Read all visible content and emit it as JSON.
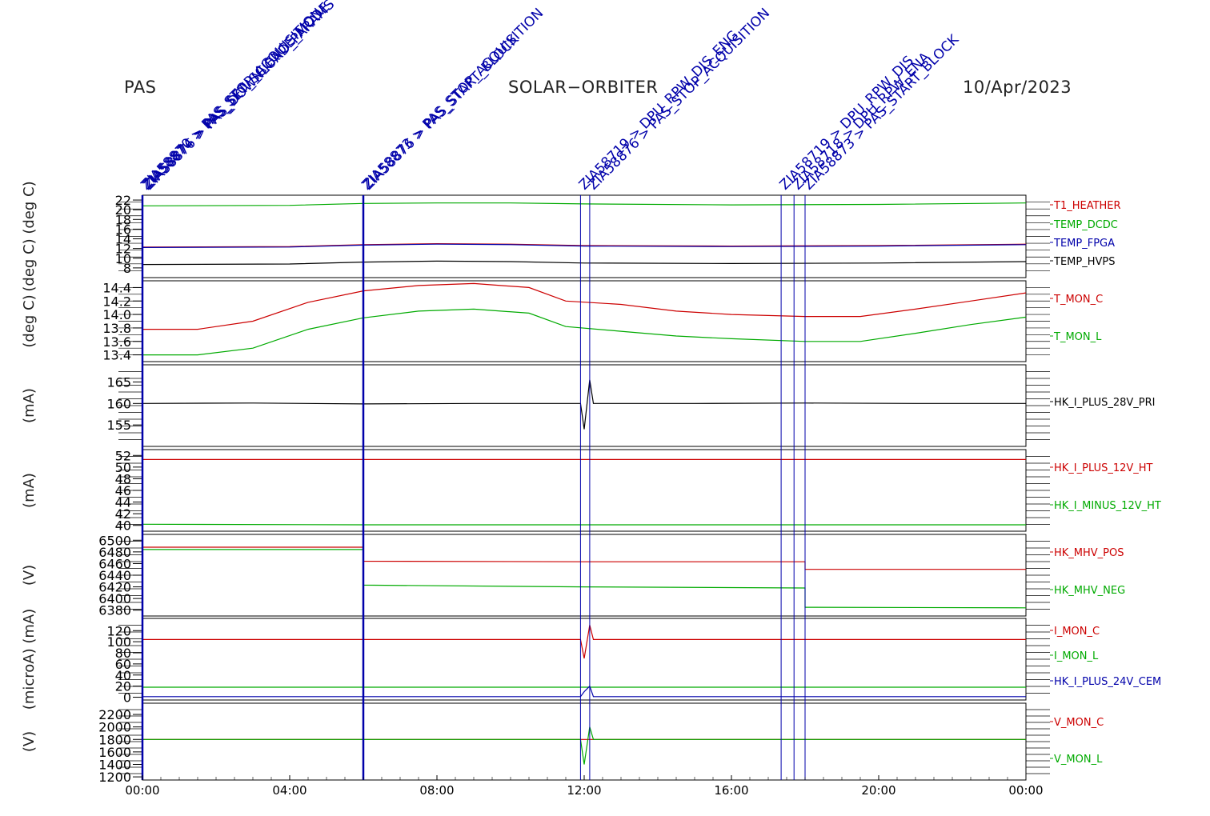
{
  "header": {
    "left": "PAS",
    "center": "SOLAR−ORBITER",
    "right": "10/Apr/2023"
  },
  "chart_data": {
    "type": "line",
    "x_axis": {
      "range": [
        "00:00",
        "24:00"
      ],
      "tick_labels": [
        "00:00",
        "04:00",
        "08:00",
        "12:00",
        "16:00",
        "20:00",
        "00:00"
      ]
    },
    "events": {
      "line_color": "#0000aa",
      "lines_hours": [
        0.0,
        6.0,
        11.9,
        12.15,
        17.35,
        17.7,
        18.0
      ],
      "labels": [
        {
          "hour": 0.0,
          "text": "ZIA58870 > PAS_STOP_ACQUISITION"
        },
        {
          "hour": 0.0,
          "text": "ZIA58874 > PAS_SET_SCIENCE_MODE"
        },
        {
          "hour": 0.0,
          "text": "ZIA58876 > PAS_DOWNLOAD_PARAMS"
        },
        {
          "hour": 6.0,
          "text": "ZIA58873 > PAS_STOP_ACQUISITION"
        },
        {
          "hour": 6.0,
          "text": "ZIA58876 > PAS_START_BLOCK"
        },
        {
          "hour": 11.9,
          "text": "ZIA58719 > DPU_RPW_DIS_ENG"
        },
        {
          "hour": 12.15,
          "text": "ZIA58876 > PAS_STOP_ACQUISITION"
        },
        {
          "hour": 17.35,
          "text": "ZIA58719 > DPU_RPW_DIS"
        },
        {
          "hour": 17.7,
          "text": "ZIA58718 > DPU_RPW_ENA"
        },
        {
          "hour": 18.0,
          "text": "ZIA58873 > PAS_START_BLOCK"
        }
      ]
    },
    "panels": [
      {
        "ylabel": "(deg C) (deg C)",
        "ylim": [
          6,
          23
        ],
        "tick_labels": [
          "8",
          "10",
          "12",
          "14",
          "16",
          "18",
          "20",
          "22"
        ],
        "ticks": [
          8,
          10,
          12,
          14,
          16,
          18,
          20,
          22
        ],
        "series": [
          {
            "name": "T1_HEATHER",
            "color": "#cc0000",
            "x": [
              0,
              4,
              6,
              8,
              10,
              12,
              16,
              20,
              24
            ],
            "y": [
              12.3,
              12.4,
              12.8,
              13.0,
              12.9,
              12.6,
              12.5,
              12.6,
              12.9
            ]
          },
          {
            "name": "TEMP_DCDC",
            "color": "#00aa00",
            "x": [
              0,
              4,
              6,
              8,
              10,
              12,
              16,
              20,
              24
            ],
            "y": [
              20.8,
              20.9,
              21.3,
              21.4,
              21.4,
              21.2,
              21.0,
              21.1,
              21.4
            ]
          },
          {
            "name": "TEMP_FPGA",
            "color": "#0000aa",
            "x": [
              0,
              4,
              6,
              8,
              10,
              12,
              16,
              20,
              24
            ],
            "y": [
              12.2,
              12.3,
              12.7,
              12.9,
              12.8,
              12.5,
              12.4,
              12.5,
              12.8
            ]
          },
          {
            "name": "TEMP_HVPS",
            "color": "#000000",
            "x": [
              0,
              4,
              6,
              8,
              10,
              12,
              16,
              20,
              24
            ],
            "y": [
              8.7,
              8.8,
              9.2,
              9.4,
              9.3,
              9.0,
              8.9,
              9.0,
              9.3
            ]
          }
        ]
      },
      {
        "ylabel": "(deg C)",
        "ylim": [
          13.3,
          14.5
        ],
        "tick_labels": [
          "13.4",
          "13.6",
          "13.8",
          "14.0",
          "14.2",
          "14.4"
        ],
        "ticks": [
          13.4,
          13.6,
          13.8,
          14.0,
          14.2,
          14.4
        ],
        "series": [
          {
            "name": "T_MON_C",
            "color": "#cc0000",
            "x": [
              0,
              1.5,
              3,
              4.5,
              6,
              7.5,
              9,
              10.5,
              11.5,
              13,
              14.5,
              16,
              18,
              19.5,
              21,
              22.5,
              24
            ],
            "y": [
              13.78,
              13.78,
              13.9,
              14.18,
              14.35,
              14.43,
              14.46,
              14.4,
              14.2,
              14.15,
              14.05,
              14.0,
              13.97,
              13.97,
              14.08,
              14.2,
              14.32
            ]
          },
          {
            "name": "T_MON_L",
            "color": "#00aa00",
            "x": [
              0,
              1.5,
              3,
              4.5,
              6,
              7.5,
              9,
              10.5,
              11.5,
              13,
              14.5,
              16,
              18,
              19.5,
              21,
              22.5,
              24
            ],
            "y": [
              13.4,
              13.4,
              13.5,
              13.78,
              13.95,
              14.05,
              14.08,
              14.02,
              13.82,
              13.75,
              13.68,
              13.64,
              13.6,
              13.6,
              13.72,
              13.85,
              13.96
            ]
          }
        ]
      },
      {
        "ylabel": "(mA)",
        "ylim": [
          150,
          169
        ],
        "tick_labels": [
          "155",
          "160",
          "165"
        ],
        "ticks": [
          155,
          160,
          165
        ],
        "series": [
          {
            "name": "HK_I_PLUS_28V_PRI",
            "color": "#000000",
            "x": [
              0,
              3,
              6,
              9,
              11.9,
              12.0,
              12.15,
              12.25,
              15,
              18,
              21,
              24
            ],
            "y": [
              160,
              160.1,
              159.9,
              160,
              160,
              154,
              165.5,
              160,
              160,
              160.1,
              160,
              160
            ]
          }
        ]
      },
      {
        "ylabel": "(mA)",
        "ylim": [
          39,
          53
        ],
        "tick_labels": [
          "40",
          "42",
          "44",
          "46",
          "48",
          "50",
          "52"
        ],
        "ticks": [
          40,
          42,
          44,
          46,
          48,
          50,
          52
        ],
        "series": [
          {
            "name": "HK_I_PLUS_12V_HT",
            "color": "#cc0000",
            "x": [
              0,
              6,
              12,
              18,
              24
            ],
            "y": [
              51.3,
              51.3,
              51.3,
              51.3,
              51.3
            ]
          },
          {
            "name": "HK_I_MINUS_12V_HT",
            "color": "#00aa00",
            "x": [
              0,
              6,
              12,
              18,
              24
            ],
            "y": [
              40.2,
              40.1,
              40.1,
              40.1,
              40.1
            ]
          }
        ]
      },
      {
        "ylabel": "(V)",
        "ylim": [
          6370,
          6510
        ],
        "tick_labels": [
          "6380",
          "6400",
          "6420",
          "6440",
          "6460",
          "6480",
          "6500"
        ],
        "ticks": [
          6380,
          6400,
          6420,
          6440,
          6460,
          6480,
          6500
        ],
        "series": [
          {
            "name": "HK_MHV_POS",
            "color": "#cc0000",
            "x": [
              0,
              6,
              6,
              12,
              18,
              18,
              24
            ],
            "y": [
              6488,
              6488,
              6464,
              6463,
              6463,
              6450,
              6450
            ]
          },
          {
            "name": "HK_MHV_NEG",
            "color": "#00aa00",
            "x": [
              0,
              6,
              6,
              12,
              18,
              18,
              24
            ],
            "y": [
              6484,
              6484,
              6423,
              6420,
              6418,
              6385,
              6384
            ]
          }
        ]
      },
      {
        "ylabel": "(microA) (mA)",
        "ylim": [
          -5,
          142
        ],
        "tick_labels": [
          "0",
          "20",
          "40",
          "60",
          "80",
          "100",
          "120"
        ],
        "ticks": [
          0,
          20,
          40,
          60,
          80,
          100,
          120
        ],
        "series": [
          {
            "name": "I_MON_C",
            "color": "#cc0000",
            "x": [
              0,
              6,
              11.9,
              12.0,
              12.15,
              12.25,
              18,
              24
            ],
            "y": [
              104,
              104,
              104,
              70,
              130,
              104,
              104,
              104
            ]
          },
          {
            "name": "I_MON_L",
            "color": "#00aa00",
            "x": [
              0,
              6,
              12,
              18,
              24
            ],
            "y": [
              18,
              18,
              18,
              18,
              18
            ]
          },
          {
            "name": "HK_I_PLUS_24V_CEM",
            "color": "#0000aa",
            "x": [
              0,
              11.9,
              12.0,
              12.15,
              12.25,
              24
            ],
            "y": [
              1,
              1,
              10,
              20,
              1,
              1
            ]
          }
        ]
      },
      {
        "ylabel": "(V)",
        "ylim": [
          1150,
          2380
        ],
        "tick_labels": [
          "1200",
          "1400",
          "1600",
          "1800",
          "2000",
          "2200"
        ],
        "ticks": [
          1200,
          1400,
          1600,
          1800,
          2000,
          2200
        ],
        "series": [
          {
            "name": "V_MON_C",
            "color": "#cc0000",
            "x": [
              0,
              24
            ],
            "y": [
              1800,
              1800
            ]
          },
          {
            "name": "V_MON_L",
            "color": "#00aa00",
            "x": [
              0,
              11.9,
              12.0,
              12.15,
              12.25,
              24
            ],
            "y": [
              1800,
              1800,
              1400,
              2000,
              1800,
              1800
            ]
          }
        ]
      }
    ]
  }
}
